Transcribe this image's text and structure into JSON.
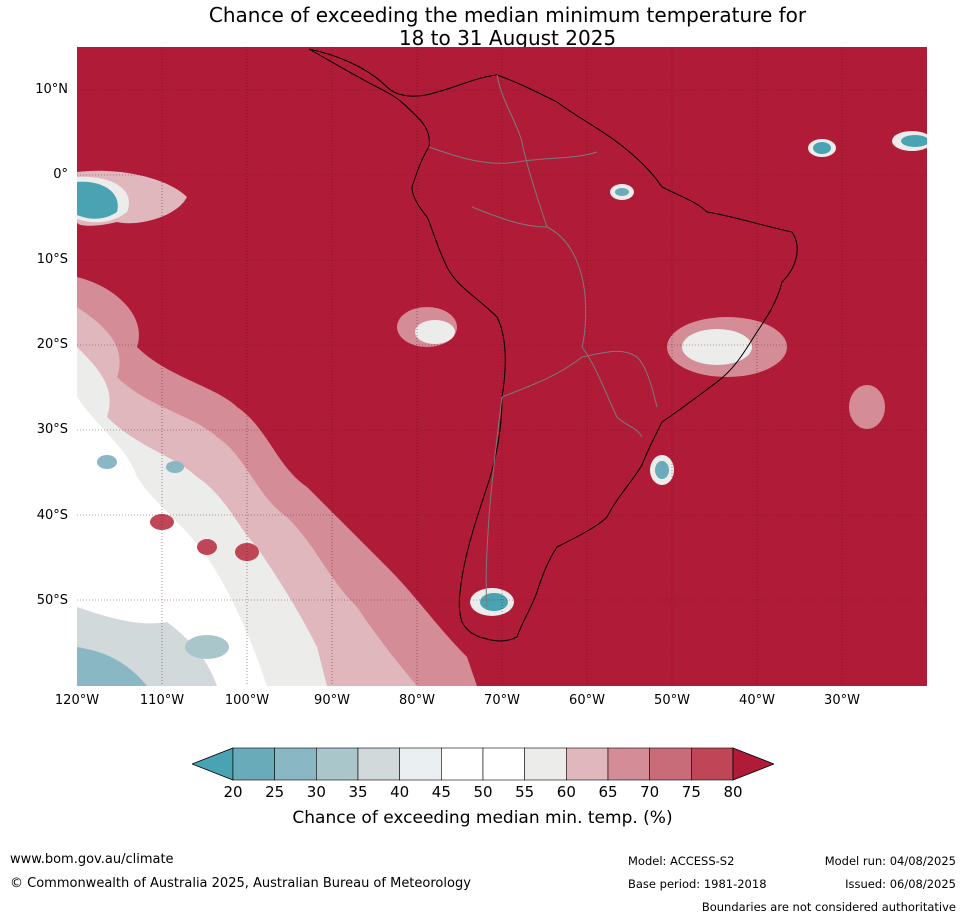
{
  "title": {
    "line1": "Chance of exceeding the median minimum temperature for",
    "line2": "18 to 31 August 2025"
  },
  "map": {
    "lat_labels": [
      "10°N",
      "0°",
      "10°S",
      "20°S",
      "30°S",
      "40°S",
      "50°S"
    ],
    "lon_labels": [
      "120°W",
      "110°W",
      "100°W",
      "90°W",
      "80°W",
      "70°W",
      "60°W",
      "50°W",
      "40°W",
      "30°W"
    ],
    "colors": {
      "ocean_land_high": "#b01c37",
      "country_border": "#7a7a7a",
      "coastline": "#000000",
      "gridline": "#5a1020"
    }
  },
  "colorbar": {
    "label": "Chance of exceeding median min. temp. (%)",
    "ticks": [
      "20",
      "25",
      "30",
      "35",
      "40",
      "45",
      "50",
      "55",
      "60",
      "65",
      "70",
      "75",
      "80"
    ],
    "colors": [
      "#4aa3b3",
      "#6aabb9",
      "#8ab7c4",
      "#a9c7cb",
      "#d1d9db",
      "#eaeff1",
      "#ffffff",
      "#ffffff",
      "#ececea",
      "#e0b7bd",
      "#d48d97",
      "#c96c79",
      "#bf4656",
      "#b01c37"
    ]
  },
  "footer": {
    "website": "www.bom.gov.au/climate",
    "copyright": "© Commonwealth of Australia 2025, Australian Bureau of Meteorology",
    "model": "Model: ACCESS-S2",
    "base_period": "Base period: 1981-2018",
    "model_run": "Model run: 04/08/2025",
    "issued": "Issued: 06/08/2025",
    "disclaimer": "Boundaries are not considered authoritative"
  }
}
